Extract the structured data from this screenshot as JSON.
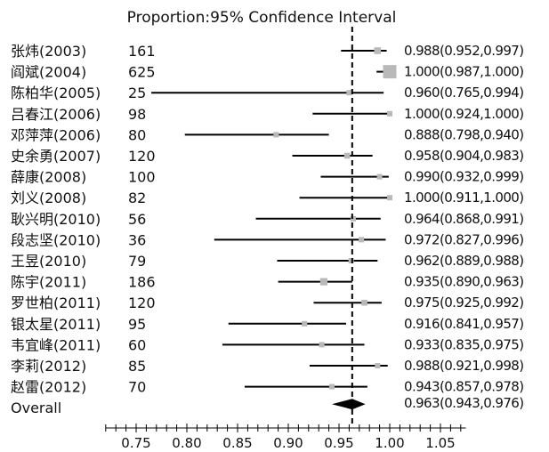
{
  "chart_data": {
    "type": "forest",
    "title": "Proportion:95% Confidence Interval",
    "xlim": [
      0.7,
      1.08
    ],
    "x_ticks": [
      0.75,
      0.8,
      0.85,
      0.9,
      0.95,
      1.0,
      1.05
    ],
    "x_tick_labels": [
      "0.75",
      "0.80",
      "0.85",
      "0.90",
      "0.95",
      "1.00",
      "1.05"
    ],
    "reference_line": 0.963,
    "studies": [
      {
        "name": "张炜(2003)",
        "n": "161",
        "estimate": 0.988,
        "lower": 0.952,
        "upper": 0.997,
        "ci_text": "0.988(0.952,0.997)"
      },
      {
        "name": "阎斌(2004)",
        "n": "625",
        "estimate": 1.0,
        "lower": 0.987,
        "upper": 1.0,
        "ci_text": "1.000(0.987,1.000)"
      },
      {
        "name": "陈柏华(2005)",
        "n": "25",
        "estimate": 0.96,
        "lower": 0.765,
        "upper": 0.994,
        "ci_text": "0.960(0.765,0.994)"
      },
      {
        "name": "吕春江(2006)",
        "n": "98",
        "estimate": 1.0,
        "lower": 0.924,
        "upper": 1.0,
        "ci_text": "1.000(0.924,1.000)"
      },
      {
        "name": "邓萍萍(2006)",
        "n": "80",
        "estimate": 0.888,
        "lower": 0.798,
        "upper": 0.94,
        "ci_text": "0.888(0.798,0.940)"
      },
      {
        "name": "史余勇(2007)",
        "n": "120",
        "estimate": 0.958,
        "lower": 0.904,
        "upper": 0.983,
        "ci_text": "0.958(0.904,0.983)"
      },
      {
        "name": "薛康(2008)",
        "n": "100",
        "estimate": 0.99,
        "lower": 0.932,
        "upper": 0.999,
        "ci_text": "0.990(0.932,0.999)"
      },
      {
        "name": "刘义(2008)",
        "n": "82",
        "estimate": 1.0,
        "lower": 0.911,
        "upper": 1.0,
        "ci_text": "1.000(0.911,1.000)"
      },
      {
        "name": "耿兴明(2010)",
        "n": "56",
        "estimate": 0.964,
        "lower": 0.868,
        "upper": 0.991,
        "ci_text": "0.964(0.868,0.991)"
      },
      {
        "name": "段志坚(2010)",
        "n": "36",
        "estimate": 0.972,
        "lower": 0.827,
        "upper": 0.996,
        "ci_text": "0.972(0.827,0.996)"
      },
      {
        "name": "王昱(2010)",
        "n": "79",
        "estimate": 0.962,
        "lower": 0.889,
        "upper": 0.988,
        "ci_text": "0.962(0.889,0.988)"
      },
      {
        "name": "陈宇(2011)",
        "n": "186",
        "estimate": 0.935,
        "lower": 0.89,
        "upper": 0.963,
        "ci_text": "0.935(0.890,0.963)"
      },
      {
        "name": "罗世柏(2011)",
        "n": "120",
        "estimate": 0.975,
        "lower": 0.925,
        "upper": 0.992,
        "ci_text": "0.975(0.925,0.992)"
      },
      {
        "name": "银太星(2011)",
        "n": "95",
        "estimate": 0.916,
        "lower": 0.841,
        "upper": 0.957,
        "ci_text": "0.916(0.841,0.957)"
      },
      {
        "name": "韦宜峰(2011)",
        "n": "60",
        "estimate": 0.933,
        "lower": 0.835,
        "upper": 0.975,
        "ci_text": "0.933(0.835,0.975)"
      },
      {
        "name": "李莉(2012)",
        "n": "85",
        "estimate": 0.988,
        "lower": 0.921,
        "upper": 0.998,
        "ci_text": "0.988(0.921,0.998)"
      },
      {
        "name": "赵雷(2012)",
        "n": "70",
        "estimate": 0.943,
        "lower": 0.857,
        "upper": 0.978,
        "ci_text": "0.943(0.857,0.978)"
      }
    ],
    "overall": {
      "name": "Overall",
      "estimate": 0.963,
      "lower": 0.943,
      "upper": 0.976,
      "ci_text": "0.963(0.943,0.976)"
    },
    "colors": {
      "marker": "#b9b9b9",
      "line": "#000000",
      "diamond": "#000000"
    }
  }
}
